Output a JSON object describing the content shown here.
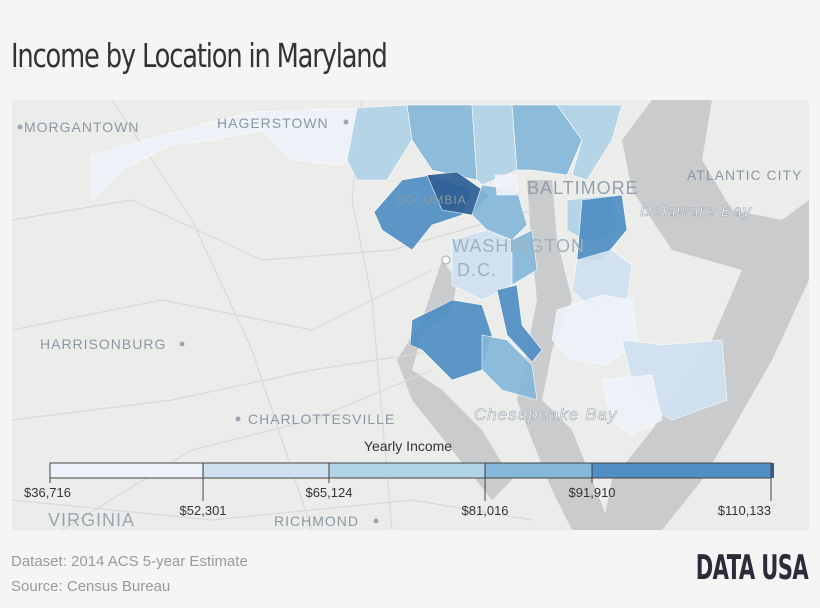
{
  "title": "Income by Location in Maryland",
  "map_labels": {
    "morgantown": "MORGANTOWN",
    "hagerstown": "HAGERSTOWN",
    "baltimore": "BALTIMORE",
    "atlantic_city": "ATLANTIC CITY",
    "delaware_bay": "Delaware Bay",
    "columbia": "COLUMBIA",
    "washington": "WASHINGTON",
    "dc": "D.C.",
    "harrisonburg": "HARRISONBURG",
    "charlottesville": "CHARLOTTESVILLE",
    "chesapeake_bay": "Chesapeake Bay",
    "virginia": "VIRGINIA",
    "richmond": "RICHMOND"
  },
  "legend": {
    "title": "Yearly Income",
    "ticks": [
      "$36,716",
      "$52,301",
      "$65,124",
      "$81,016",
      "$91,910",
      "$110,133"
    ],
    "tick_values": [
      36716,
      52301,
      65124,
      81016,
      91910,
      110133
    ],
    "colors": [
      "#eef2fa",
      "#cfe1f0",
      "#b1d3e7",
      "#85b8da",
      "#4f8fc5"
    ]
  },
  "chart_data": {
    "type": "choropleth",
    "title": "Income by Location in Maryland",
    "legend_title": "Yearly Income",
    "bins": [
      36716,
      52301,
      65124,
      81016,
      91910,
      110133
    ],
    "max_color": "#2f5f96"
  },
  "footer": {
    "dataset": "Dataset: 2014 ACS 5-year Estimate",
    "source": "Source: Census Bureau"
  },
  "logo": "DATA USA"
}
